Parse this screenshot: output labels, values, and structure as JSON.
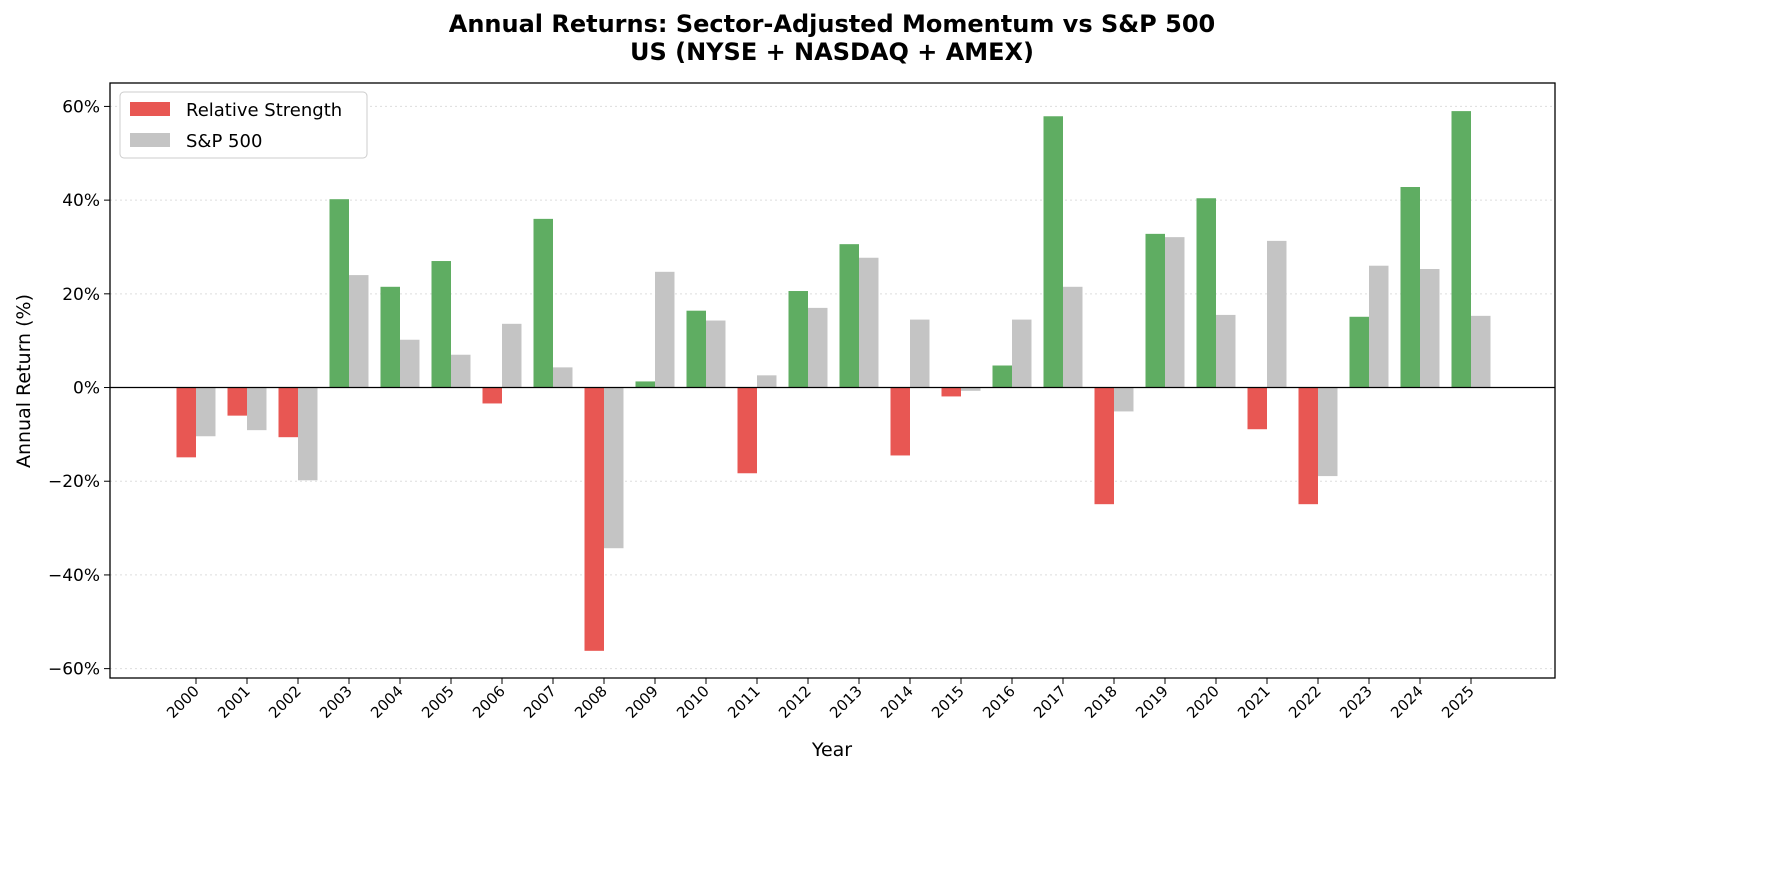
{
  "chart_data": {
    "type": "bar",
    "title": "Annual Returns: Sector-Adjusted Momentum vs S&P 500",
    "subtitle": "US (NYSE + NASDAQ + AMEX)",
    "xlabel": "Year",
    "ylabel": "Annual Return (%)",
    "ylim": [
      -62,
      65
    ],
    "yticks": [
      -60,
      -40,
      -20,
      0,
      20,
      40,
      60
    ],
    "ytick_labels": [
      "−60%",
      "−40%",
      "−20%",
      "0%",
      "20%",
      "40%",
      "60%"
    ],
    "grid": "y, dotted",
    "legend_position": "top-left",
    "categories": [
      "2000",
      "2001",
      "2002",
      "2003",
      "2004",
      "2005",
      "2006",
      "2007",
      "2008",
      "2009",
      "2010",
      "2011",
      "2012",
      "2013",
      "2014",
      "2015",
      "2016",
      "2017",
      "2018",
      "2019",
      "2020",
      "2021",
      "2022",
      "2023",
      "2024",
      "2025"
    ],
    "series": [
      {
        "name": "Relative Strength",
        "color_positive": "#5fad62",
        "color_negative": "#e85753",
        "legend_color": "#e85753",
        "values": [
          -14.9,
          -6.0,
          -10.6,
          40.2,
          21.5,
          27.0,
          -3.4,
          36.0,
          -56.2,
          1.3,
          16.4,
          -18.3,
          20.6,
          30.6,
          -14.5,
          -1.9,
          4.7,
          57.9,
          -24.9,
          32.8,
          40.4,
          -8.9,
          -24.9,
          15.1,
          42.8,
          59.0
        ]
      },
      {
        "name": "S&P 500",
        "color": "#c4c4c4",
        "values": [
          -10.4,
          -9.1,
          -19.8,
          24.0,
          10.2,
          7.0,
          13.6,
          4.3,
          -34.3,
          24.7,
          14.3,
          2.6,
          17.0,
          27.7,
          14.5,
          -0.7,
          14.5,
          21.5,
          -5.1,
          32.1,
          15.5,
          31.3,
          -18.9,
          26.0,
          25.3,
          15.3
        ]
      }
    ]
  }
}
